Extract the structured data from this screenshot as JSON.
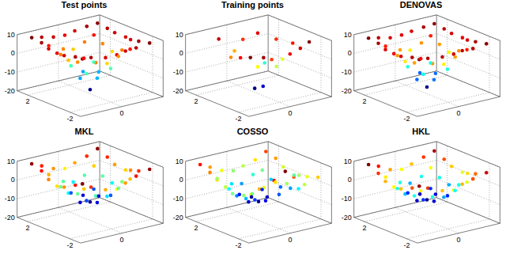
{
  "chart_data": [
    {
      "type": "scatter",
      "title": "Test points",
      "grid": true,
      "marker": "dot",
      "xlim": [
        -3,
        3
      ],
      "ylim": [
        -3,
        3
      ],
      "zlim": [
        -20,
        10
      ],
      "xticks": [
        0
      ],
      "yticks": [
        -2,
        2
      ],
      "zticks": [
        -20,
        -10,
        0,
        10
      ],
      "x": [
        -2.4,
        -1.7,
        -0.8,
        0.1,
        0.8,
        1.5,
        2.4,
        -2.3,
        -1.6,
        -0.9,
        0,
        0.9,
        1.6,
        2.3,
        -2.5,
        -1.6,
        -0.8,
        -0.1,
        0.8,
        1.7,
        2.4,
        -2.4,
        -1.5,
        -0.8,
        0,
        0.7,
        1.6,
        2.5,
        -2.4,
        -1.6,
        -0.7,
        0.1,
        0.8,
        1.6,
        2.4,
        -2.3,
        -1.7,
        -0.8,
        0,
        0.9,
        1.5,
        2.4,
        -2.4,
        -1.6,
        -0.9,
        0,
        0.8,
        1.6,
        2.3
      ],
      "y": [
        -2.4,
        -2.3,
        -2.5,
        -2.4,
        -2.3,
        -2.4,
        -2.5,
        -1.6,
        -1.5,
        -1.7,
        -1.6,
        -1.5,
        -1.7,
        -1.6,
        -0.8,
        -0.9,
        -0.7,
        -0.8,
        -0.9,
        -0.8,
        -0.7,
        0,
        0.1,
        -0.1,
        0,
        0.1,
        0,
        -0.1,
        0.8,
        0.7,
        0.9,
        0.8,
        0.7,
        0.9,
        0.8,
        1.6,
        1.7,
        1.5,
        1.6,
        1.7,
        1.6,
        1.5,
        2.4,
        2.5,
        2.3,
        2.4,
        2.5,
        2.4,
        2.3
      ],
      "z": [
        8.3,
        7.6,
        6.4,
        6.1,
        6.7,
        7.4,
        8.6,
        7.4,
        5.2,
        2.1,
        -0.2,
        1.8,
        4.9,
        7.7,
        6.6,
        1.8,
        -6.2,
        -9.7,
        -5.8,
        2.2,
        6.3,
        5.9,
        0.3,
        -10.1,
        -17.8,
        -9.8,
        -0.2,
        6.2,
        6.4,
        2.1,
        -5.9,
        -10.2,
        -6.1,
        1.9,
        6.6,
        7.6,
        4.8,
        1.9,
        0.1,
        2.2,
        5.1,
        7.3,
        8.7,
        7.3,
        6.6,
        5.8,
        6.5,
        7.7,
        8.4
      ]
    },
    {
      "type": "scatter",
      "title": "Training points",
      "grid": true,
      "marker": "dot",
      "xlim": [
        -3,
        3
      ],
      "ylim": [
        -3,
        3
      ],
      "zlim": [
        -20,
        10
      ],
      "xticks": [
        0
      ],
      "yticks": [
        -2,
        2
      ],
      "zticks": [
        -20,
        -10,
        0,
        10
      ],
      "x": [
        -2.2,
        -1.4,
        -0.5,
        0.6,
        1.5,
        2.3,
        -2.0,
        -0.9,
        0.3,
        1.2,
        2.1,
        -1.7,
        -0.2,
        0.9,
        1.9,
        -0.6,
        0.4,
        -1.2,
        1.4,
        0.1
      ],
      "y": [
        -2.1,
        -2.3,
        -1.9,
        -2.2,
        -2.0,
        -1.8,
        -0.9,
        -1.1,
        -1.3,
        -0.7,
        -0.5,
        0.4,
        0.1,
        0.6,
        0.8,
        1.5,
        2.0,
        2.2,
        1.9,
        -0.3
      ],
      "z": [
        8.0,
        7.0,
        3.5,
        5.2,
        6.2,
        7.8,
        4.8,
        -1.5,
        -3.0,
        -2.0,
        4.5,
        1.5,
        -17.0,
        -6.5,
        4.0,
        0.5,
        3.8,
        6.3,
        5.6,
        -15.5
      ]
    },
    {
      "type": "scatter",
      "title": "DENOVAS",
      "grid": true,
      "marker": "dot",
      "xlim": [
        -3,
        3
      ],
      "ylim": [
        -3,
        3
      ],
      "zlim": [
        -20,
        10
      ],
      "xticks": [
        0
      ],
      "yticks": [
        -2,
        2
      ],
      "zticks": [
        -20,
        -10,
        0,
        10
      ],
      "x": [
        -2.4,
        -1.7,
        -0.8,
        0.1,
        0.8,
        1.5,
        2.4,
        -2.3,
        -1.6,
        -0.9,
        0,
        0.9,
        1.6,
        2.3,
        -2.5,
        -1.6,
        -0.8,
        -0.1,
        0.8,
        1.7,
        2.4,
        -2.4,
        -1.5,
        -0.8,
        0,
        0.7,
        1.6,
        2.5,
        -2.4,
        -1.6,
        -0.7,
        0.1,
        0.8,
        1.6,
        2.4,
        -2.3,
        -1.7,
        -0.8,
        0,
        0.9,
        1.5,
        2.4,
        -2.4,
        -1.6,
        -0.9,
        0,
        0.8,
        1.6,
        2.3
      ],
      "y": [
        -2.4,
        -2.3,
        -2.5,
        -2.4,
        -2.3,
        -2.4,
        -2.5,
        -1.6,
        -1.5,
        -1.7,
        -1.6,
        -1.5,
        -1.7,
        -1.6,
        -0.8,
        -0.9,
        -0.7,
        -0.8,
        -0.9,
        -0.8,
        -0.7,
        0,
        0.1,
        -0.1,
        0,
        0.1,
        0,
        -0.1,
        0.8,
        0.7,
        0.9,
        0.8,
        0.7,
        0.9,
        0.8,
        1.6,
        1.7,
        1.5,
        1.6,
        1.7,
        1.6,
        1.5,
        2.4,
        2.5,
        2.3,
        2.4,
        2.5,
        2.4,
        2.3
      ],
      "z": [
        8.0,
        7.2,
        6.8,
        6.5,
        6.9,
        7.0,
        8.2,
        7.1,
        5.0,
        1.6,
        -0.6,
        1.5,
        4.6,
        7.4,
        6.2,
        1.4,
        -6.6,
        -10.5,
        -6.3,
        1.8,
        6.1,
        5.6,
        -0.4,
        -10.8,
        -16.4,
        -10.6,
        -0.6,
        5.8,
        6.0,
        1.6,
        -6.4,
        -10.8,
        -6.5,
        1.5,
        6.2,
        7.3,
        4.5,
        1.4,
        -0.4,
        1.7,
        4.7,
        7.0,
        8.4,
        7.0,
        6.2,
        5.9,
        6.3,
        7.3,
        8.1
      ]
    },
    {
      "type": "scatter",
      "title": "MKL",
      "grid": true,
      "marker": "dot",
      "xlim": [
        -3,
        3
      ],
      "ylim": [
        -3,
        3
      ],
      "zlim": [
        -20,
        10
      ],
      "xticks": [
        0
      ],
      "yticks": [
        -2,
        2
      ],
      "zticks": [
        -20,
        -10,
        0,
        10
      ],
      "x": [
        -2.4,
        -1.7,
        -0.8,
        0.1,
        0.8,
        1.5,
        2.4,
        -2.3,
        -1.6,
        -0.9,
        0,
        0.9,
        1.6,
        2.3,
        -2.5,
        -1.6,
        -0.8,
        -0.1,
        0.8,
        1.7,
        2.4,
        -2.4,
        -1.5,
        -0.8,
        0,
        0.7,
        1.6,
        2.5,
        -2.4,
        -1.6,
        -0.7,
        0.1,
        0.8,
        1.6,
        2.4,
        -2.3,
        -1.7,
        -0.8,
        0,
        0.9,
        1.5,
        2.4,
        -2.4,
        -1.6,
        -0.9,
        0,
        0.8,
        1.6,
        2.3
      ],
      "y": [
        -2.4,
        -2.3,
        -2.5,
        -2.4,
        -2.3,
        -2.4,
        -2.5,
        -1.6,
        -1.5,
        -1.7,
        -1.6,
        -1.5,
        -1.7,
        -1.6,
        -0.8,
        -0.9,
        -0.7,
        -0.8,
        -0.9,
        -0.8,
        -0.7,
        0,
        0.1,
        -0.1,
        0,
        0.1,
        0,
        -0.1,
        0.8,
        0.7,
        0.9,
        0.8,
        0.7,
        0.9,
        0.8,
        1.6,
        1.7,
        1.5,
        1.6,
        1.7,
        1.6,
        1.5,
        2.4,
        2.5,
        2.3,
        2.4,
        2.5,
        2.4,
        2.3
      ],
      "z": [
        9.2,
        6.0,
        3.5,
        2.0,
        3.8,
        6.5,
        8.8,
        6.5,
        3.0,
        -1.5,
        -3.5,
        -1.0,
        3.2,
        6.0,
        4.0,
        -1.0,
        -6.5,
        -8.5,
        -6.0,
        -0.5,
        4.2,
        2.5,
        -3.0,
        -8.8,
        -10.2,
        -8.5,
        -2.8,
        2.8,
        4.2,
        -0.8,
        -6.2,
        -8.6,
        -6.3,
        -1.2,
        3.8,
        6.8,
        3.5,
        -1.2,
        -3.2,
        -1.4,
        2.8,
        6.2,
        8.9,
        6.2,
        4.0,
        2.2,
        3.6,
        6.0,
        9.0
      ]
    },
    {
      "type": "scatter",
      "title": "COSSO",
      "grid": true,
      "marker": "dot",
      "xlim": [
        -3,
        3
      ],
      "ylim": [
        -3,
        3
      ],
      "zlim": [
        -20,
        10
      ],
      "xticks": [
        0
      ],
      "yticks": [
        -2,
        2
      ],
      "zticks": [
        -20,
        -10,
        0,
        10
      ],
      "x": [
        -2.4,
        -1.7,
        -0.8,
        0.1,
        0.8,
        1.5,
        2.4,
        -2.3,
        -1.6,
        -0.9,
        0,
        0.9,
        1.6,
        2.3,
        -2.5,
        -1.6,
        -0.8,
        -0.1,
        0.8,
        1.7,
        2.4,
        -2.4,
        -1.5,
        -0.8,
        0,
        0.7,
        1.6,
        2.5,
        -2.4,
        -1.6,
        -0.7,
        0.1,
        0.8,
        1.6,
        2.4,
        -2.3,
        -1.7,
        -0.8,
        0,
        0.9,
        1.5,
        2.4,
        -2.4,
        -1.6,
        -0.9,
        0,
        0.8,
        1.6,
        2.3
      ],
      "y": [
        -2.4,
        -2.3,
        -2.5,
        -2.4,
        -2.3,
        -2.4,
        -2.5,
        -1.6,
        -1.5,
        -1.7,
        -1.6,
        -1.5,
        -1.7,
        -1.6,
        -0.8,
        -0.9,
        -0.7,
        -0.8,
        -0.9,
        -0.8,
        -0.7,
        0,
        0.1,
        -0.1,
        0,
        0.1,
        0,
        -0.1,
        0.8,
        0.7,
        0.9,
        0.8,
        0.7,
        0.9,
        0.8,
        1.6,
        1.7,
        1.5,
        1.6,
        1.7,
        1.6,
        1.5,
        2.4,
        2.5,
        2.3,
        2.4,
        2.5,
        2.4,
        2.3
      ],
      "z": [
        3.5,
        5.0,
        8.5,
        11.5,
        7.0,
        2.0,
        4.5,
        1.0,
        0.5,
        3.0,
        4.0,
        1.5,
        -2.0,
        3.0,
        0.5,
        -3.5,
        -6.0,
        -7.5,
        -5.5,
        -4.0,
        1.5,
        2.0,
        -4.5,
        -8.5,
        -10.0,
        -9.0,
        -5.0,
        0.0,
        4.0,
        -2.0,
        -7.0,
        -9.5,
        -6.5,
        -3.0,
        2.5,
        6.0,
        1.5,
        -2.5,
        -4.0,
        -1.0,
        0.5,
        5.5,
        8.5,
        5.5,
        3.0,
        1.0,
        2.0,
        4.0,
        7.5
      ]
    },
    {
      "type": "scatter",
      "title": "HKL",
      "grid": true,
      "marker": "dot",
      "xlim": [
        -3,
        3
      ],
      "ylim": [
        -3,
        3
      ],
      "zlim": [
        -20,
        10
      ],
      "xticks": [
        0
      ],
      "yticks": [
        -2,
        2
      ],
      "zticks": [
        -20,
        -10,
        0,
        10
      ],
      "x": [
        -2.4,
        -1.7,
        -0.8,
        0.1,
        0.8,
        1.5,
        2.4,
        -2.3,
        -1.6,
        -0.9,
        0,
        0.9,
        1.6,
        2.3,
        -2.5,
        -1.6,
        -0.8,
        -0.1,
        0.8,
        1.7,
        2.4,
        -2.4,
        -1.5,
        -0.8,
        0,
        0.7,
        1.6,
        2.5,
        -2.4,
        -1.6,
        -0.7,
        0.1,
        0.8,
        1.6,
        2.4,
        -2.3,
        -1.7,
        -0.8,
        0,
        0.9,
        1.5,
        2.4,
        -2.4,
        -1.6,
        -0.9,
        0,
        0.8,
        1.6,
        2.3
      ],
      "y": [
        -2.4,
        -2.3,
        -2.5,
        -2.4,
        -2.3,
        -2.4,
        -2.5,
        -1.6,
        -1.5,
        -1.7,
        -1.6,
        -1.5,
        -1.7,
        -1.6,
        -0.8,
        -0.9,
        -0.7,
        -0.8,
        -0.9,
        -0.8,
        -0.7,
        0,
        0.1,
        -0.1,
        0,
        0.1,
        0,
        -0.1,
        0.8,
        0.7,
        0.9,
        0.8,
        0.7,
        0.9,
        0.8,
        1.6,
        1.7,
        1.5,
        1.6,
        1.7,
        1.6,
        1.5,
        2.4,
        2.5,
        2.3,
        2.4,
        2.5,
        2.4,
        2.3
      ],
      "z": [
        8.0,
        5.5,
        3.0,
        1.5,
        3.2,
        5.0,
        7.0,
        5.0,
        2.0,
        -2.0,
        -4.0,
        -2.2,
        1.5,
        4.5,
        3.0,
        -2.0,
        -6.0,
        -7.8,
        -6.2,
        -2.2,
        2.5,
        2.0,
        -3.5,
        -7.8,
        -9.0,
        -7.5,
        -3.8,
        1.5,
        3.2,
        -1.8,
        -6.2,
        -8.0,
        -6.0,
        -2.0,
        2.8,
        5.5,
        2.2,
        -1.8,
        -3.8,
        -2.0,
        1.8,
        5.0,
        8.5,
        6.0,
        3.5,
        1.8,
        3.0,
        5.5,
        7.8
      ]
    }
  ]
}
